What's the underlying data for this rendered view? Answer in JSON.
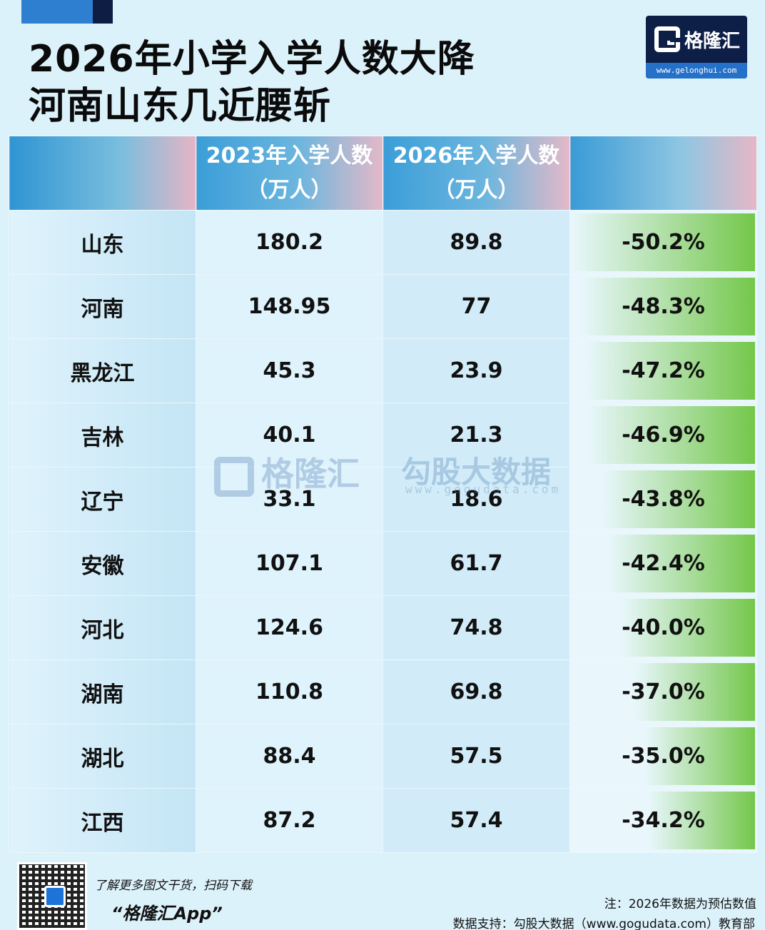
{
  "title_line1": "2026年小学入学人数大降",
  "title_line2": "河南山东几近腰斩",
  "logo": {
    "name": "格隆汇",
    "url": "www.gelonghui.com"
  },
  "chart_data": {
    "type": "table",
    "columns": [
      "",
      "2023年入学人数（万人）",
      "2026年入学人数（万人）",
      ""
    ],
    "header": {
      "col1_line1": "2023年入学人数",
      "col1_line2": "（万人）",
      "col2_line1": "2026年入学人数",
      "col2_line2": "（万人）"
    },
    "rows": [
      {
        "province": "山东",
        "y2023": "180.2",
        "y2026": "89.8",
        "change": "-50.2%",
        "change_value": -50.2
      },
      {
        "province": "河南",
        "y2023": "148.95",
        "y2026": "77",
        "change": "-48.3%",
        "change_value": -48.3
      },
      {
        "province": "黑龙江",
        "y2023": "45.3",
        "y2026": "23.9",
        "change": "-47.2%",
        "change_value": -47.2
      },
      {
        "province": "吉林",
        "y2023": "40.1",
        "y2026": "21.3",
        "change": "-46.9%",
        "change_value": -46.9
      },
      {
        "province": "辽宁",
        "y2023": "33.1",
        "y2026": "18.6",
        "change": "-43.8%",
        "change_value": -43.8
      },
      {
        "province": "安徽",
        "y2023": "107.1",
        "y2026": "61.7",
        "change": "-42.4%",
        "change_value": -42.4
      },
      {
        "province": "河北",
        "y2023": "124.6",
        "y2026": "74.8",
        "change": "-40.0%",
        "change_value": -40.0
      },
      {
        "province": "湖南",
        "y2023": "110.8",
        "y2026": "69.8",
        "change": "-37.0%",
        "change_value": -37.0
      },
      {
        "province": "湖北",
        "y2023": "88.4",
        "y2026": "57.5",
        "change": "-35.0%",
        "change_value": -35.0
      },
      {
        "province": "江西",
        "y2023": "87.2",
        "y2026": "57.4",
        "change": "-34.2%",
        "change_value": -34.2
      }
    ]
  },
  "watermark": {
    "left": "格隆汇",
    "right": "勾股大数据",
    "right_url": "www.gogudata.com"
  },
  "footer": {
    "promo": "了解更多图文干货，扫码下载",
    "app": "“格隆汇App”",
    "note": "注：2026年数据为预估数值",
    "source": "数据支持：勾股大数据（www.gogudata.com）教育部"
  },
  "colors": {
    "header_blue": "#3b9ed8",
    "bar_green": "#74c74a",
    "background": "#dcf2fb"
  }
}
